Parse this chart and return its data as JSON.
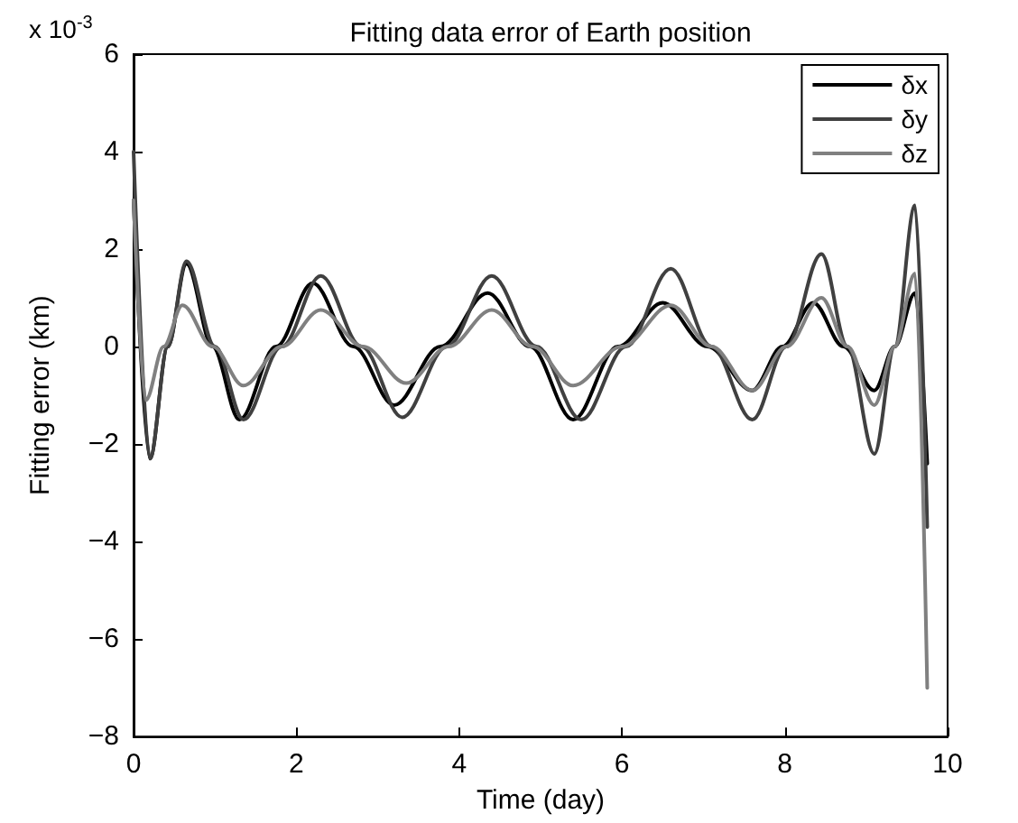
{
  "chart_data": {
    "type": "line",
    "title": "Fitting data error of Earth position",
    "xlabel": "Time (day)",
    "ylabel": "Fitting error (km)",
    "annotations": [
      "x 10$^{-3}$"
    ],
    "xlim": [
      0,
      10
    ],
    "xticks": [
      0,
      2,
      4,
      6,
      8,
      10
    ],
    "ylim": [
      -8,
      6
    ],
    "yticks": [
      -8,
      -6,
      -4,
      -2,
      0,
      2,
      4,
      6
    ],
    "grid": false,
    "legend": "top right",
    "marker": "none",
    "line_style": "solid",
    "series": [
      {
        "name": "δx",
        "color": "#000000",
        "x": [
          0,
          0.2,
          0.42,
          0.65,
          0.97,
          1.3,
          1.75,
          2.2,
          2.7,
          3.2,
          3.77,
          4.35,
          4.87,
          5.4,
          5.95,
          6.5,
          7.05,
          7.6,
          7.97,
          8.35,
          8.72,
          9.1,
          9.35,
          9.6,
          9.75
        ],
        "values": [
          3,
          -2.3,
          0,
          1.7,
          0,
          -1.5,
          0,
          1.3,
          0,
          -1.2,
          0,
          1.1,
          0,
          -1.5,
          0,
          0.9,
          0,
          -0.9,
          0,
          0.9,
          0,
          -0.9,
          0,
          1.1,
          -2.4
        ]
      },
      {
        "name": "δy",
        "color": "#404040",
        "x": [
          0,
          0.2,
          0.42,
          0.65,
          1.0,
          1.35,
          1.82,
          2.3,
          2.8,
          3.3,
          3.85,
          4.4,
          4.95,
          5.5,
          6.05,
          6.6,
          7.1,
          7.6,
          8.02,
          8.45,
          8.77,
          9.1,
          9.35,
          9.6,
          9.75
        ],
        "values": [
          4,
          -2.3,
          0,
          1.75,
          0,
          -1.5,
          0,
          1.45,
          0,
          -1.45,
          0,
          1.45,
          0,
          -1.5,
          0,
          1.6,
          0,
          -1.5,
          0,
          1.9,
          0,
          -2.2,
          0,
          2.9,
          -3.7
        ]
      },
      {
        "name": "δz",
        "color": "#808080",
        "x": [
          0,
          0.15,
          0.37,
          0.6,
          0.97,
          1.35,
          1.82,
          2.3,
          2.82,
          3.35,
          3.87,
          4.4,
          4.9,
          5.4,
          6.0,
          6.6,
          7.1,
          7.6,
          8.02,
          8.45,
          8.77,
          9.1,
          9.35,
          9.6,
          9.75
        ],
        "values": [
          3,
          -1.1,
          0,
          0.85,
          0,
          -0.8,
          0,
          0.75,
          0,
          -0.75,
          0,
          0.75,
          0,
          -0.8,
          0,
          0.85,
          0,
          -0.9,
          0,
          1.0,
          0,
          -1.2,
          0,
          1.5,
          -7
        ]
      }
    ]
  }
}
